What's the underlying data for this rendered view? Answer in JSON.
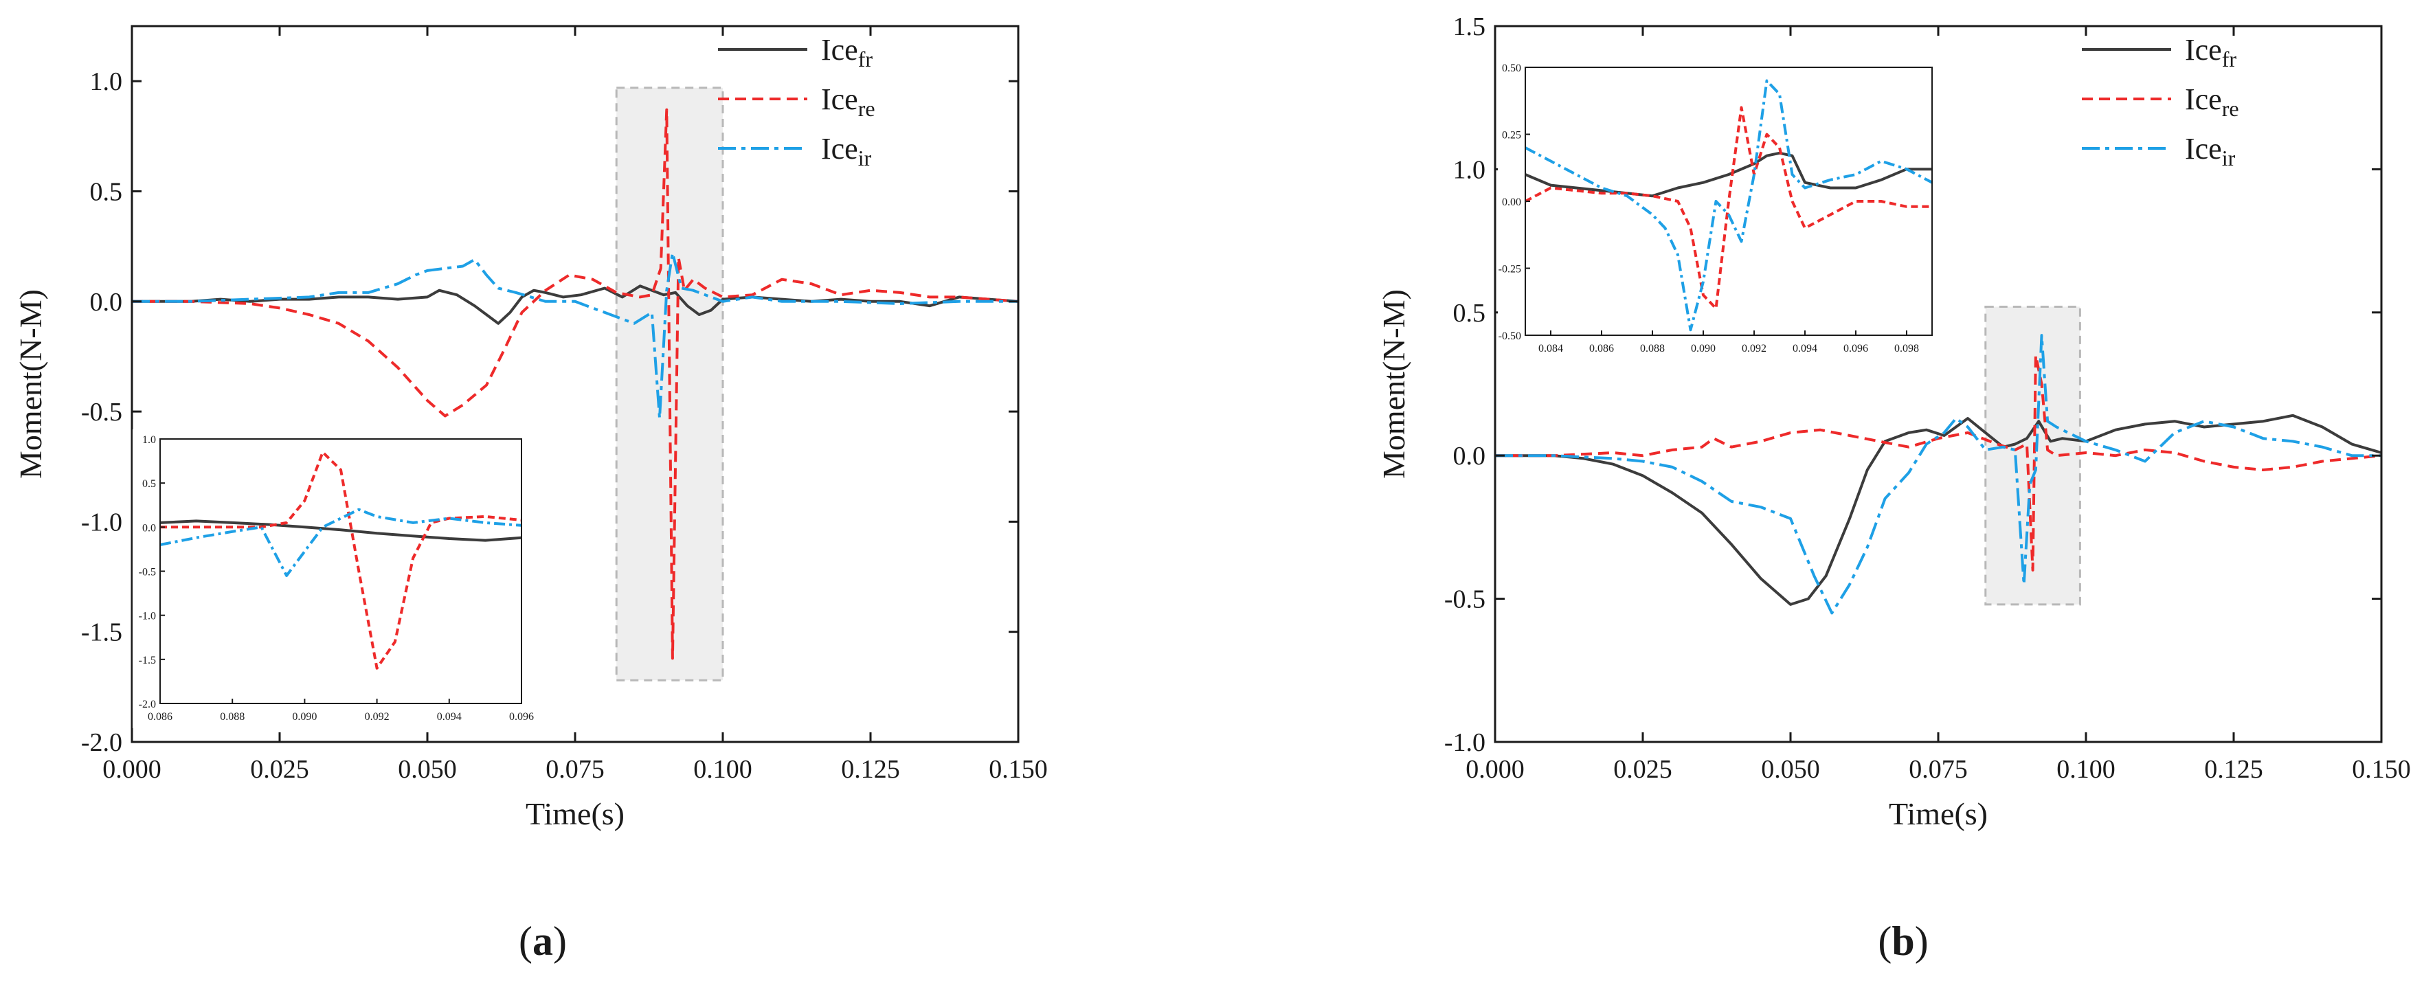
{
  "figure": {
    "colors": {
      "fr": "#3c3c3c",
      "re": "#ee2a2a",
      "ir": "#1ea0e6",
      "highlight_fill": "#eeeeee",
      "highlight_stroke": "#b8b8b8"
    }
  },
  "chart_data": [
    {
      "id": "a",
      "type": "line",
      "panel_label": "(a)",
      "panel_letter": "a",
      "xlabel": "Time(s)",
      "ylabel": "Moment(N-M)",
      "xlim": [
        0,
        0.15
      ],
      "ylim": [
        -2.0,
        1.25
      ],
      "xticks": [
        0,
        0.025,
        0.05,
        0.075,
        0.1,
        0.125,
        0.15
      ],
      "xtick_labels": [
        "0.000",
        "0.025",
        "0.050",
        "0.075",
        "0.100",
        "0.125",
        "0.150"
      ],
      "yticks": [
        -2.0,
        -1.5,
        -1.0,
        -0.5,
        0,
        0.5,
        1.0
      ],
      "ytick_labels": [
        "-2.0",
        "-1.5",
        "-1.0",
        "-0.5",
        "0.0",
        "0.5",
        "1.0"
      ],
      "legend": {
        "placement": "top-right",
        "entries": [
          {
            "key": "fr",
            "base": "Ice",
            "sub": "fr"
          },
          {
            "key": "re",
            "base": "Ice",
            "sub": "re"
          },
          {
            "key": "ir",
            "base": "Ice",
            "sub": "ir"
          }
        ]
      },
      "highlight": {
        "x": [
          0.082,
          0.1
        ],
        "y": [
          -1.72,
          0.97
        ]
      },
      "series": [
        {
          "key": "fr",
          "name": "Ice_fr",
          "style": "solid",
          "x": [
            0,
            0.005,
            0.01,
            0.015,
            0.02,
            0.025,
            0.03,
            0.035,
            0.04,
            0.045,
            0.05,
            0.052,
            0.055,
            0.058,
            0.06,
            0.062,
            0.064,
            0.066,
            0.068,
            0.07,
            0.073,
            0.076,
            0.08,
            0.083,
            0.086,
            0.088,
            0.09,
            0.092,
            0.094,
            0.096,
            0.098,
            0.1,
            0.105,
            0.11,
            0.115,
            0.12,
            0.125,
            0.13,
            0.135,
            0.14,
            0.145,
            0.15
          ],
          "y": [
            0,
            0,
            0,
            0.01,
            0,
            0.01,
            0.01,
            0.02,
            0.02,
            0.01,
            0.02,
            0.05,
            0.03,
            -0.02,
            -0.06,
            -0.1,
            -0.05,
            0.02,
            0.05,
            0.04,
            0.02,
            0.03,
            0.06,
            0.02,
            0.07,
            0.05,
            0.03,
            0.04,
            -0.02,
            -0.06,
            -0.04,
            0.01,
            0.02,
            0.01,
            0,
            0.01,
            0,
            0,
            -0.02,
            0.02,
            0.01,
            0
          ]
        },
        {
          "key": "re",
          "name": "Ice_re",
          "style": "dashed",
          "x": [
            0,
            0.01,
            0.02,
            0.025,
            0.03,
            0.035,
            0.04,
            0.045,
            0.05,
            0.053,
            0.056,
            0.06,
            0.063,
            0.066,
            0.07,
            0.074,
            0.078,
            0.082,
            0.086,
            0.088,
            0.0895,
            0.0905,
            0.0915,
            0.0925,
            0.0935,
            0.095,
            0.097,
            0.1,
            0.105,
            0.11,
            0.115,
            0.12,
            0.125,
            0.13,
            0.135,
            0.14,
            0.145,
            0.15
          ],
          "y": [
            0,
            0,
            -0.01,
            -0.03,
            -0.06,
            -0.1,
            -0.18,
            -0.3,
            -0.45,
            -0.52,
            -0.47,
            -0.38,
            -0.22,
            -0.05,
            0.05,
            0.12,
            0.1,
            0.04,
            0.02,
            0.03,
            0.15,
            0.87,
            -1.62,
            0.2,
            0.05,
            0.1,
            0.06,
            0.02,
            0.03,
            0.1,
            0.08,
            0.03,
            0.05,
            0.04,
            0.02,
            0.02,
            0.01,
            0
          ]
        },
        {
          "key": "ir",
          "name": "Ice_ir",
          "style": "dashdot",
          "x": [
            0,
            0.01,
            0.02,
            0.03,
            0.035,
            0.04,
            0.045,
            0.048,
            0.05,
            0.053,
            0.056,
            0.058,
            0.06,
            0.062,
            0.065,
            0.07,
            0.075,
            0.08,
            0.085,
            0.088,
            0.0893,
            0.0905,
            0.0915,
            0.093,
            0.095,
            0.098,
            0.1,
            0.105,
            0.11,
            0.12,
            0.13,
            0.14,
            0.15
          ],
          "y": [
            0,
            0,
            0.01,
            0.02,
            0.04,
            0.04,
            0.08,
            0.12,
            0.14,
            0.15,
            0.16,
            0.19,
            0.12,
            0.06,
            0.04,
            0.0,
            0.0,
            -0.05,
            -0.1,
            -0.05,
            -0.53,
            0.05,
            0.22,
            0.06,
            0.05,
            0.02,
            0.0,
            0.02,
            0,
            0,
            -0.01,
            0,
            0
          ]
        }
      ],
      "inset": {
        "xlim": [
          0.086,
          0.096
        ],
        "ylim": [
          -2.0,
          1.0
        ],
        "xticks": [
          0.086,
          0.088,
          0.09,
          0.092,
          0.094,
          0.096
        ],
        "xtick_labels": [
          "0.086",
          "0.088",
          "0.090",
          "0.092",
          "0.094",
          "0.096"
        ],
        "yticks": [
          -2.0,
          -1.5,
          -1.0,
          -0.5,
          0,
          0.5,
          1.0
        ],
        "ytick_labels": [
          "-2.0",
          "-1.5",
          "-1.0",
          "-0.5",
          "0.0",
          "0.5",
          "1.0"
        ],
        "series": [
          {
            "key": "fr",
            "x": [
              0.086,
              0.087,
              0.088,
              0.089,
              0.09,
              0.091,
              0.092,
              0.093,
              0.094,
              0.095,
              0.096
            ],
            "y": [
              0.05,
              0.07,
              0.05,
              0.03,
              0.0,
              -0.03,
              -0.07,
              -0.1,
              -0.13,
              -0.15,
              -0.12
            ]
          },
          {
            "key": "re",
            "x": [
              0.086,
              0.087,
              0.088,
              0.0888,
              0.0895,
              0.09,
              0.0905,
              0.091,
              0.0915,
              0.092,
              0.0925,
              0.093,
              0.0935,
              0.094,
              0.095,
              0.096
            ],
            "y": [
              0,
              0,
              0,
              0,
              0.05,
              0.3,
              0.85,
              0.65,
              -0.5,
              -1.6,
              -1.3,
              -0.35,
              0.05,
              0.1,
              0.12,
              0.08
            ]
          },
          {
            "key": "ir",
            "x": [
              0.086,
              0.087,
              0.088,
              0.0888,
              0.0895,
              0.0905,
              0.0915,
              0.092,
              0.093,
              0.094,
              0.095,
              0.096
            ],
            "y": [
              -0.2,
              -0.12,
              -0.05,
              0.0,
              -0.55,
              0.0,
              0.2,
              0.12,
              0.05,
              0.1,
              0.05,
              0.02
            ]
          }
        ]
      }
    },
    {
      "id": "b",
      "type": "line",
      "panel_label": "(b)",
      "panel_letter": "b",
      "xlabel": "Time(s)",
      "ylabel": "Moment(N-M)",
      "xlim": [
        0,
        0.15
      ],
      "ylim": [
        -1.0,
        1.5
      ],
      "xticks": [
        0,
        0.025,
        0.05,
        0.075,
        0.1,
        0.125,
        0.15
      ],
      "xtick_labels": [
        "0.000",
        "0.025",
        "0.050",
        "0.075",
        "0.100",
        "0.125",
        "0.150"
      ],
      "yticks": [
        -1.0,
        -0.5,
        0,
        0.5,
        1.0,
        1.5
      ],
      "ytick_labels": [
        "-1.0",
        "-0.5",
        "0.0",
        "0.5",
        "1.0",
        "1.5"
      ],
      "legend": {
        "placement": "top-right",
        "entries": [
          {
            "key": "fr",
            "base": "Ice",
            "sub": "fr"
          },
          {
            "key": "re",
            "base": "Ice",
            "sub": "re"
          },
          {
            "key": "ir",
            "base": "Ice",
            "sub": "ir"
          }
        ]
      },
      "highlight": {
        "x": [
          0.083,
          0.099
        ],
        "y": [
          -0.52,
          0.52
        ]
      },
      "series": [
        {
          "key": "fr",
          "name": "Ice_fr",
          "style": "solid",
          "x": [
            0,
            0.01,
            0.015,
            0.02,
            0.025,
            0.03,
            0.035,
            0.04,
            0.045,
            0.05,
            0.053,
            0.056,
            0.06,
            0.063,
            0.066,
            0.07,
            0.073,
            0.076,
            0.08,
            0.083,
            0.086,
            0.088,
            0.09,
            0.092,
            0.094,
            0.096,
            0.1,
            0.105,
            0.11,
            0.115,
            0.12,
            0.125,
            0.13,
            0.135,
            0.14,
            0.145,
            0.15
          ],
          "y": [
            0,
            0,
            -0.01,
            -0.03,
            -0.07,
            -0.13,
            -0.2,
            -0.31,
            -0.43,
            -0.52,
            -0.5,
            -0.42,
            -0.22,
            -0.05,
            0.05,
            0.08,
            0.09,
            0.07,
            0.13,
            0.08,
            0.03,
            0.04,
            0.06,
            0.12,
            0.05,
            0.06,
            0.05,
            0.09,
            0.11,
            0.12,
            0.1,
            0.11,
            0.12,
            0.14,
            0.1,
            0.04,
            0.01
          ]
        },
        {
          "key": "re",
          "name": "Ice_re",
          "style": "dashed",
          "x": [
            0,
            0.01,
            0.02,
            0.025,
            0.03,
            0.035,
            0.037,
            0.04,
            0.045,
            0.05,
            0.055,
            0.06,
            0.065,
            0.07,
            0.075,
            0.08,
            0.085,
            0.088,
            0.09,
            0.091,
            0.0915,
            0.0925,
            0.0935,
            0.095,
            0.1,
            0.105,
            0.11,
            0.115,
            0.12,
            0.125,
            0.13,
            0.135,
            0.14,
            0.15
          ],
          "y": [
            0,
            0,
            0.01,
            0,
            0.02,
            0.03,
            0.06,
            0.03,
            0.05,
            0.08,
            0.09,
            0.07,
            0.05,
            0.03,
            0.06,
            0.08,
            0.04,
            0.02,
            0.04,
            -0.4,
            0.35,
            0.25,
            0.02,
            0.0,
            0.01,
            0.0,
            0.02,
            0.01,
            -0.02,
            -0.04,
            -0.05,
            -0.04,
            -0.02,
            0
          ]
        },
        {
          "key": "ir",
          "name": "Ice_ir",
          "style": "dashdot",
          "x": [
            0,
            0.01,
            0.02,
            0.025,
            0.03,
            0.035,
            0.04,
            0.045,
            0.05,
            0.054,
            0.057,
            0.06,
            0.063,
            0.066,
            0.07,
            0.073,
            0.076,
            0.078,
            0.08,
            0.083,
            0.086,
            0.088,
            0.0895,
            0.0905,
            0.0915,
            0.0925,
            0.0935,
            0.095,
            0.1,
            0.105,
            0.11,
            0.115,
            0.12,
            0.125,
            0.13,
            0.135,
            0.14,
            0.145,
            0.15
          ],
          "y": [
            0,
            0,
            -0.01,
            -0.02,
            -0.04,
            -0.09,
            -0.16,
            -0.18,
            -0.22,
            -0.42,
            -0.55,
            -0.45,
            -0.32,
            -0.15,
            -0.06,
            0.04,
            0.08,
            0.13,
            0.1,
            0.02,
            0.03,
            0.02,
            -0.45,
            -0.1,
            -0.05,
            0.42,
            0.12,
            0.1,
            0.05,
            0.02,
            -0.02,
            0.08,
            0.12,
            0.1,
            0.06,
            0.05,
            0.03,
            0.0,
            0.0
          ]
        }
      ],
      "inset": {
        "xlim": [
          0.083,
          0.099
        ],
        "ylim": [
          -0.5,
          0.5
        ],
        "xticks": [
          0.084,
          0.086,
          0.088,
          0.09,
          0.092,
          0.094,
          0.096,
          0.098
        ],
        "xtick_labels": [
          "0.084",
          "0.086",
          "0.088",
          "0.090",
          "0.092",
          "0.094",
          "0.096",
          "0.098"
        ],
        "yticks": [
          -0.5,
          -0.25,
          0,
          0.25,
          0.5
        ],
        "ytick_labels": [
          "-0.50",
          "-0.25",
          "0.00",
          "0.25",
          "0.50"
        ],
        "series": [
          {
            "key": "fr",
            "x": [
              0.083,
              0.084,
              0.085,
              0.086,
              0.087,
              0.088,
              0.089,
              0.09,
              0.091,
              0.092,
              0.0925,
              0.093,
              0.0935,
              0.094,
              0.095,
              0.096,
              0.097,
              0.098,
              0.099
            ],
            "y": [
              0.1,
              0.06,
              0.05,
              0.04,
              0.03,
              0.02,
              0.05,
              0.07,
              0.1,
              0.14,
              0.17,
              0.18,
              0.17,
              0.07,
              0.05,
              0.05,
              0.08,
              0.12,
              0.12
            ]
          },
          {
            "key": "re",
            "x": [
              0.083,
              0.084,
              0.085,
              0.086,
              0.087,
              0.088,
              0.089,
              0.0895,
              0.09,
              0.0905,
              0.091,
              0.0915,
              0.092,
              0.0925,
              0.093,
              0.0935,
              0.094,
              0.095,
              0.096,
              0.097,
              0.098,
              0.099
            ],
            "y": [
              0.0,
              0.05,
              0.04,
              0.03,
              0.03,
              0.02,
              0.0,
              -0.1,
              -0.35,
              -0.4,
              0.0,
              0.35,
              0.1,
              0.25,
              0.2,
              0.0,
              -0.1,
              -0.05,
              0.0,
              0.0,
              -0.02,
              -0.02
            ]
          },
          {
            "key": "ir",
            "x": [
              0.083,
              0.084,
              0.085,
              0.086,
              0.087,
              0.088,
              0.0885,
              0.089,
              0.0895,
              0.09,
              0.0905,
              0.091,
              0.0915,
              0.092,
              0.0925,
              0.093,
              0.0935,
              0.094,
              0.095,
              0.096,
              0.097,
              0.098,
              0.099
            ],
            "y": [
              0.2,
              0.15,
              0.1,
              0.05,
              0.02,
              -0.05,
              -0.1,
              -0.2,
              -0.48,
              -0.3,
              0.0,
              -0.05,
              -0.15,
              0.1,
              0.45,
              0.4,
              0.1,
              0.05,
              0.08,
              0.1,
              0.15,
              0.12,
              0.07
            ]
          }
        ]
      }
    }
  ]
}
